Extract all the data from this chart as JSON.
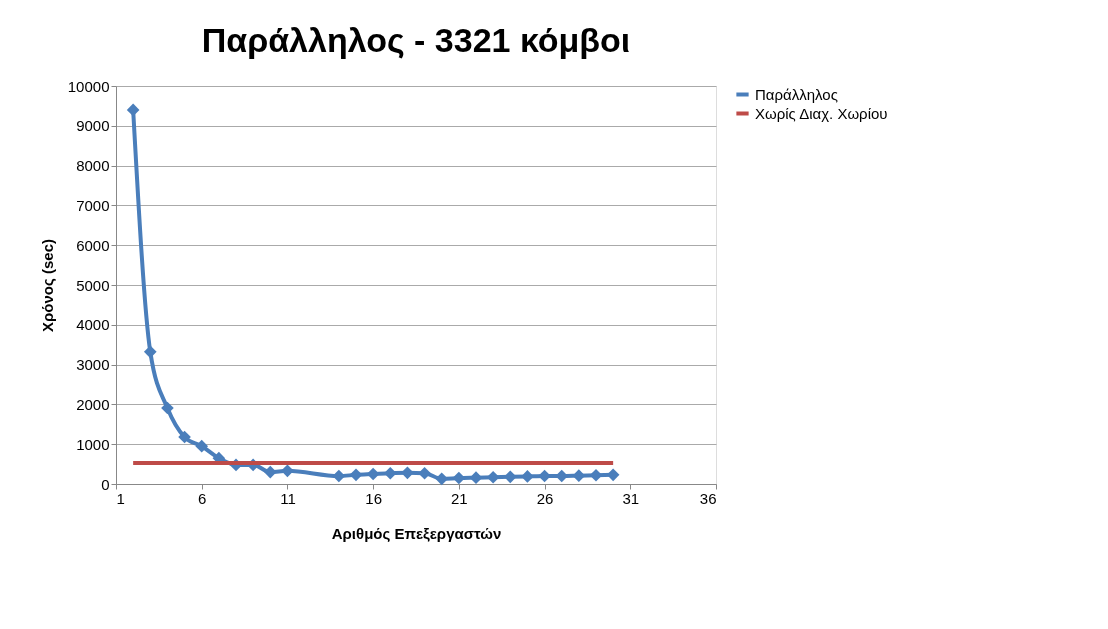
{
  "chart_data": {
    "type": "line",
    "title": "Παράλληλος - 3321 κόμβοι",
    "xlabel": "Αριθμός Επεξεργαστών",
    "ylabel": "Χρόνος (sec)",
    "xlim": [
      1,
      36
    ],
    "xticks": [
      1,
      6,
      11,
      16,
      21,
      26,
      31,
      36
    ],
    "ylim": [
      0,
      10000
    ],
    "yticks": [
      0,
      1000,
      2000,
      3000,
      4000,
      5000,
      6000,
      7000,
      8000,
      9000,
      10000
    ],
    "grid": "y",
    "legend": "right",
    "series": [
      {
        "name": "Παράλληλος",
        "color": "#4a7ebb",
        "marker": "diamond",
        "x": [
          2,
          3,
          4,
          5,
          6,
          7,
          8,
          9,
          10,
          11,
          14,
          15,
          16,
          17,
          18,
          19,
          20,
          21,
          22,
          23,
          24,
          25,
          26,
          27,
          28,
          29,
          30
        ],
        "values": [
          9400,
          3320,
          1910,
          1180,
          950,
          650,
          480,
          480,
          300,
          330,
          200,
          230,
          250,
          270,
          280,
          270,
          130,
          150,
          160,
          170,
          180,
          190,
          200,
          200,
          210,
          220,
          230
        ]
      },
      {
        "name": "Χωρίς Διαχ. Χωρίου",
        "color": "#be4b48",
        "marker": "none",
        "x": [
          2,
          30
        ],
        "values": [
          530,
          530
        ]
      }
    ]
  }
}
